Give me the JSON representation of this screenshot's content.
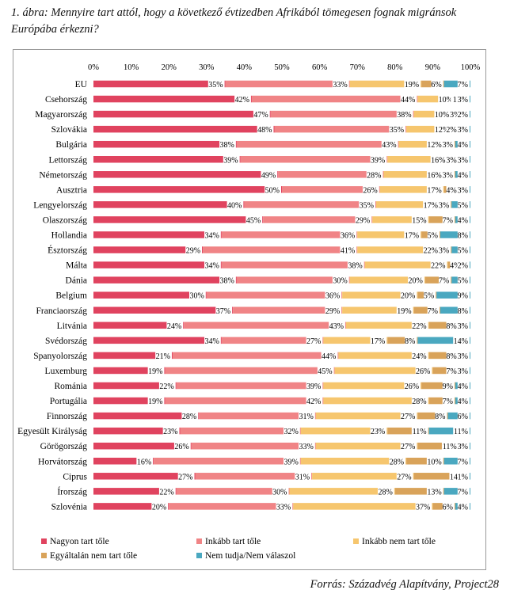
{
  "figure": {
    "title": "1. ábra: Mennyire tart attól, hogy a következő évtizedben Afrikából tömegesen fognak migránsok Európába érkezni?",
    "source": "Forrás: Századvég Alapítvány, Project28"
  },
  "chart_data": {
    "type": "bar",
    "orientation": "horizontal",
    "stacked": true,
    "xlim": [
      0,
      100
    ],
    "x_ticks": [
      "0%",
      "10%",
      "20%",
      "30%",
      "40%",
      "50%",
      "60%",
      "70%",
      "80%",
      "90%",
      "100%"
    ],
    "grid": false,
    "legend_position": "bottom",
    "categories": [
      "EU",
      "Csehország",
      "Magyarország",
      "Szlovákia",
      "Bulgária",
      "Lettország",
      "Németország",
      "Ausztria",
      "Lengyelország",
      "Olaszország",
      "Hollandia",
      "Észtország",
      "Málta",
      "Dánia",
      "Belgium",
      "Franciaország",
      "Litvánia",
      "Svédország",
      "Spanyolország",
      "Luxemburg",
      "Románia",
      "Portugália",
      "Finnország",
      "Egyesült Királyság",
      "Görögország",
      "Horvátország",
      "Ciprus",
      "Írország",
      "Szlovénia"
    ],
    "series": [
      {
        "name": "Nagyon tart tőle",
        "color": "#e0435f",
        "values": [
          35,
          42,
          47,
          48,
          38,
          39,
          49,
          50,
          40,
          45,
          34,
          29,
          34,
          38,
          30,
          37,
          24,
          34,
          21,
          19,
          22,
          19,
          28,
          23,
          26,
          16,
          27,
          22,
          20
        ],
        "labels": [
          "35%",
          "42%",
          "47%",
          "48%",
          "38%",
          "39%",
          "49%",
          "50%",
          "40%",
          "45%",
          "34%",
          "29%",
          "34%",
          "38%",
          "30%",
          "37%",
          "24%",
          "34%",
          "21%",
          "19%",
          "22%",
          "19%",
          "28%",
          "23%",
          "26%",
          "16%",
          "27%",
          "22%",
          "20%"
        ]
      },
      {
        "name": "Inkább tart tőle",
        "color": "#f08486",
        "values": [
          33,
          44,
          38,
          35,
          43,
          39,
          28,
          26,
          35,
          29,
          36,
          41,
          38,
          30,
          36,
          29,
          43,
          27,
          44,
          45,
          39,
          42,
          31,
          32,
          33,
          39,
          31,
          30,
          33
        ],
        "labels": [
          "33%",
          "44%",
          "38%",
          "35%",
          "43%",
          "39%",
          "28%",
          "26%",
          "35%",
          "29%",
          "36%",
          "41%",
          "38%",
          "30%",
          "36%",
          "29%",
          "43%",
          "27%",
          "44%",
          "45%",
          "39%",
          "42%",
          "31%",
          "32%",
          "33%",
          "39%",
          "31%",
          "30%",
          "33%"
        ]
      },
      {
        "name": "Inkább nem tart tőle",
        "color": "#f6c66e",
        "values": [
          19,
          10,
          10,
          12,
          12,
          16,
          16,
          17,
          17,
          15,
          17,
          22,
          22,
          20,
          20,
          19,
          22,
          17,
          24,
          26,
          26,
          28,
          27,
          23,
          27,
          28,
          27,
          28,
          37
        ],
        "labels": [
          "19%",
          "10%",
          "10%",
          "12%",
          "12%",
          "16%",
          "16%",
          "17%",
          "17%",
          "15%",
          "17%",
          "22%",
          "22%",
          "20%",
          "20%",
          "19%",
          "22%",
          "17%",
          "24%",
          "26%",
          "26%",
          "28%",
          "27%",
          "23%",
          "27%",
          "28%",
          "27%",
          "28%",
          "37%"
        ]
      },
      {
        "name": "Egyáltalán nem tart tőle",
        "color": "#d9a35a",
        "values": [
          6,
          1,
          3,
          2,
          3,
          3,
          3,
          4,
          3,
          7,
          5,
          3,
          4,
          7,
          5,
          7,
          8,
          8,
          8,
          7,
          9,
          7,
          8,
          11,
          11,
          10,
          14,
          13,
          6
        ],
        "labels": [
          "6%",
          "1",
          "3%",
          "2%",
          "3%",
          "3%",
          "3%",
          "4%",
          "3%",
          "7%",
          "5%",
          "3%",
          "4%",
          "7%",
          "5%",
          "7%",
          "8%",
          "8%",
          "8%",
          "7%",
          "9%",
          "7%",
          "8%",
          "11%",
          "11%",
          "10%",
          "14%",
          "13%",
          "6%"
        ]
      },
      {
        "name": "Nem tudja/Nem válaszol",
        "color": "#4aa8c0",
        "values": [
          7,
          3,
          2,
          3,
          4,
          3,
          4,
          3,
          5,
          4,
          8,
          5,
          2,
          5,
          9,
          8,
          3,
          14,
          3,
          3,
          4,
          4,
          6,
          11,
          3,
          7,
          1,
          7,
          4
        ],
        "labels": [
          "7%",
          "3%",
          "2%",
          "3%",
          "4%",
          "3%",
          "4%",
          "3%",
          "5%",
          "4%",
          "8%",
          "5%",
          "2%",
          "5%",
          "9%",
          "8%",
          "3%",
          "14%",
          "3%",
          "3%",
          "4%",
          "4%",
          "6%",
          "11%",
          "3%",
          "7%",
          "1%",
          "7%",
          "4%"
        ]
      }
    ]
  }
}
